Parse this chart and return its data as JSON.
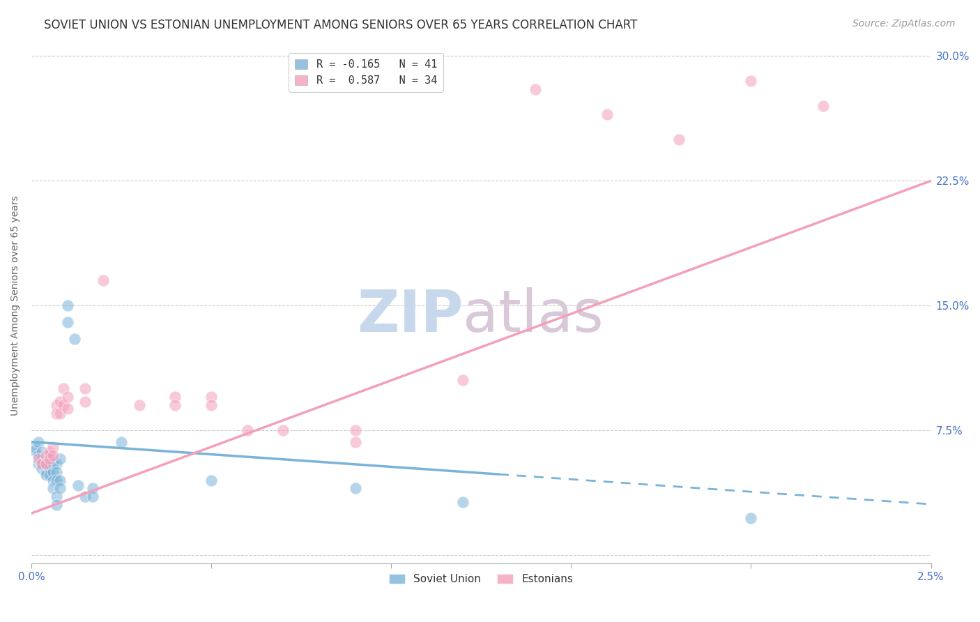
{
  "title": "SOVIET UNION VS ESTONIAN UNEMPLOYMENT AMONG SENIORS OVER 65 YEARS CORRELATION CHART",
  "source": "Source: ZipAtlas.com",
  "ylabel": "Unemployment Among Seniors over 65 years",
  "watermark_part1": "ZIP",
  "watermark_part2": "atlas",
  "legend_entries": [
    {
      "label": "R = -0.165   N = 41",
      "color": "#7ab3d9"
    },
    {
      "label": "R =  0.587   N = 34",
      "color": "#f4a0bb"
    }
  ],
  "legend_bottom": [
    "Soviet Union",
    "Estonians"
  ],
  "xlim": [
    0.0,
    0.025
  ],
  "ylim": [
    -0.005,
    0.305
  ],
  "yticks": [
    0.0,
    0.075,
    0.15,
    0.225,
    0.3
  ],
  "ytick_labels": [
    "",
    "7.5%",
    "15.0%",
    "22.5%",
    "30.0%"
  ],
  "xticks": [
    0.0,
    0.005,
    0.01,
    0.015,
    0.02,
    0.025
  ],
  "xtick_labels": [
    "0.0%",
    "",
    "",
    "",
    "",
    "2.5%"
  ],
  "grid_color": "#cccccc",
  "axis_color": "#4472c4",
  "soviet_color": "#7ab3d9",
  "estonian_color": "#f4a0bb",
  "soviet_points": [
    [
      0.0001,
      0.065
    ],
    [
      0.0001,
      0.063
    ],
    [
      0.0002,
      0.068
    ],
    [
      0.0002,
      0.06
    ],
    [
      0.0002,
      0.055
    ],
    [
      0.0003,
      0.062
    ],
    [
      0.0003,
      0.058
    ],
    [
      0.0003,
      0.055
    ],
    [
      0.0003,
      0.052
    ],
    [
      0.0004,
      0.058
    ],
    [
      0.0004,
      0.055
    ],
    [
      0.0004,
      0.05
    ],
    [
      0.0004,
      0.048
    ],
    [
      0.0005,
      0.06
    ],
    [
      0.0005,
      0.055
    ],
    [
      0.0005,
      0.052
    ],
    [
      0.0005,
      0.048
    ],
    [
      0.0006,
      0.055
    ],
    [
      0.0006,
      0.05
    ],
    [
      0.0006,
      0.045
    ],
    [
      0.0006,
      0.04
    ],
    [
      0.0007,
      0.055
    ],
    [
      0.0007,
      0.05
    ],
    [
      0.0007,
      0.045
    ],
    [
      0.0007,
      0.035
    ],
    [
      0.0007,
      0.03
    ],
    [
      0.0008,
      0.058
    ],
    [
      0.0008,
      0.045
    ],
    [
      0.0008,
      0.04
    ],
    [
      0.001,
      0.15
    ],
    [
      0.001,
      0.14
    ],
    [
      0.0012,
      0.13
    ],
    [
      0.0013,
      0.042
    ],
    [
      0.0015,
      0.035
    ],
    [
      0.0017,
      0.04
    ],
    [
      0.0017,
      0.035
    ],
    [
      0.0025,
      0.068
    ],
    [
      0.005,
      0.045
    ],
    [
      0.009,
      0.04
    ],
    [
      0.012,
      0.032
    ],
    [
      0.02,
      0.022
    ]
  ],
  "estonian_points": [
    [
      0.0002,
      0.058
    ],
    [
      0.0003,
      0.055
    ],
    [
      0.0004,
      0.06
    ],
    [
      0.0004,
      0.055
    ],
    [
      0.0005,
      0.062
    ],
    [
      0.0005,
      0.058
    ],
    [
      0.0006,
      0.065
    ],
    [
      0.0006,
      0.06
    ],
    [
      0.0007,
      0.09
    ],
    [
      0.0007,
      0.085
    ],
    [
      0.0008,
      0.092
    ],
    [
      0.0008,
      0.085
    ],
    [
      0.0009,
      0.1
    ],
    [
      0.0009,
      0.09
    ],
    [
      0.001,
      0.095
    ],
    [
      0.001,
      0.088
    ],
    [
      0.0015,
      0.1
    ],
    [
      0.0015,
      0.092
    ],
    [
      0.002,
      0.165
    ],
    [
      0.003,
      0.09
    ],
    [
      0.004,
      0.095
    ],
    [
      0.004,
      0.09
    ],
    [
      0.005,
      0.095
    ],
    [
      0.005,
      0.09
    ],
    [
      0.006,
      0.075
    ],
    [
      0.007,
      0.075
    ],
    [
      0.009,
      0.075
    ],
    [
      0.009,
      0.068
    ],
    [
      0.012,
      0.105
    ],
    [
      0.014,
      0.28
    ],
    [
      0.016,
      0.265
    ],
    [
      0.018,
      0.25
    ],
    [
      0.02,
      0.285
    ],
    [
      0.022,
      0.27
    ]
  ],
  "soviet_line_solid": {
    "x0": 0.0,
    "x1": 0.013,
    "slope": -1.5,
    "intercept": 0.068
  },
  "soviet_line_dash": {
    "x0": 0.013,
    "x1": 0.025,
    "slope": -1.5,
    "intercept": 0.068
  },
  "estonian_line": {
    "x0": 0.0,
    "x1": 0.025,
    "slope": 8.0,
    "intercept": 0.025
  },
  "title_fontsize": 12,
  "source_fontsize": 10,
  "axis_label_fontsize": 10,
  "tick_fontsize": 11,
  "watermark_fontsize": 60
}
